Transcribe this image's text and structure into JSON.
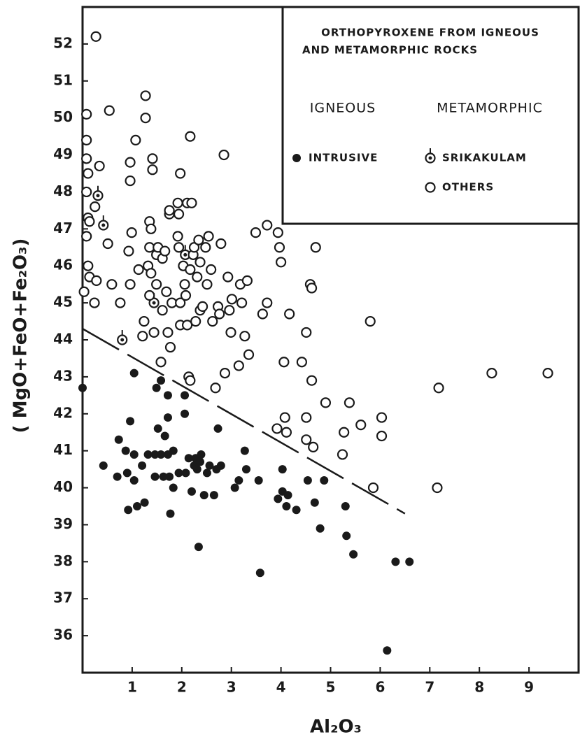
{
  "chart_data": {
    "type": "scatter",
    "legend_title": [
      "ORTHOPYROXENE FROM IGNEOUS",
      "AND METAMORPHIC ROCKS"
    ],
    "legend_groups": [
      "IGNEOUS",
      "METAMORPHIC"
    ],
    "x_label": "Al₂O₃",
    "y_label": "( MgO+FeO+Fe₂O₃)",
    "xlim": [
      0,
      10
    ],
    "xticks": [
      1,
      2,
      3,
      4,
      5,
      6,
      7,
      8,
      9
    ],
    "ylim": [
      35,
      53
    ],
    "yticks": [
      36,
      37,
      38,
      39,
      40,
      41,
      42,
      43,
      44,
      45,
      46,
      47,
      48,
      49,
      50,
      51,
      52
    ],
    "grid": false,
    "series": [
      {
        "name": "INTRUSIVE",
        "color": "#1a1a1a",
        "marker": "filled",
        "x": [
          0,
          0.42,
          0.73,
          0.7,
          0.87,
          0.9,
          0.96,
          0.92,
          1.04,
          1.04,
          1.04,
          1.1,
          1.25,
          1.2,
          1.32,
          1.46,
          1.46,
          1.49,
          1.58,
          1.52,
          1.58,
          1.63,
          1.66,
          1.72,
          1.72,
          1.72,
          1.75,
          1.77,
          1.83,
          1.83,
          1.94,
          2.06,
          2.06,
          2.08,
          2.14,
          2.2,
          2.25,
          2.28,
          2.31,
          2.34,
          2.37,
          2.39,
          2.45,
          2.51,
          2.56,
          2.65,
          2.7,
          2.73,
          2.79,
          3.07,
          3.15,
          3.27,
          3.3,
          3.55,
          3.58,
          3.94,
          4.03,
          4.03,
          4.11,
          4.14,
          4.31,
          4.54,
          4.68,
          4.79,
          4.87,
          5.3,
          5.32,
          5.46,
          6.14,
          6.31,
          6.59
        ],
        "values": [
          42.7,
          40.6,
          41.3,
          40.3,
          41.0,
          40.4,
          41.8,
          39.4,
          43.1,
          40.9,
          40.2,
          39.5,
          39.6,
          40.6,
          40.9,
          40.9,
          40.3,
          42.7,
          42.9,
          41.6,
          40.9,
          40.3,
          41.4,
          42.5,
          41.9,
          40.9,
          40.3,
          39.3,
          41.0,
          40.0,
          40.4,
          42.5,
          42.0,
          40.4,
          40.8,
          39.9,
          40.6,
          40.8,
          40.5,
          38.4,
          40.7,
          40.9,
          39.8,
          40.4,
          40.6,
          39.8,
          40.5,
          41.6,
          40.6,
          40.0,
          40.2,
          41.0,
          40.5,
          40.2,
          37.7,
          39.7,
          40.5,
          39.9,
          39.5,
          39.8,
          39.4,
          40.2,
          39.6,
          38.9,
          40.2,
          39.5,
          38.7,
          38.2,
          35.6,
          38.0,
          38.0
        ]
      },
      {
        "name": "SRIKAKULAM",
        "color": "#1a1a1a",
        "marker": "dotted",
        "x": [
          0.31,
          0.42,
          0.8,
          1.44,
          2.07
        ],
        "values": [
          47.9,
          47.1,
          44.0,
          45.0,
          46.3
        ]
      },
      {
        "name": "OTHERS",
        "color": "#1a1a1a",
        "marker": "open",
        "x": [
          0.27,
          0.08,
          0.08,
          0.08,
          0.11,
          0.08,
          0.11,
          0.14,
          0.08,
          0.11,
          0.14,
          0.28,
          0.03,
          0.24,
          0.34,
          0.25,
          0.51,
          0.54,
          0.59,
          0.76,
          0.96,
          0.96,
          0.99,
          0.93,
          0.96,
          1.07,
          1.13,
          1.24,
          1.21,
          1.27,
          1.27,
          1.32,
          1.35,
          1.35,
          1.38,
          1.38,
          1.35,
          1.41,
          1.41,
          1.44,
          1.49,
          1.52,
          1.49,
          1.58,
          1.61,
          1.61,
          1.66,
          1.69,
          1.72,
          1.75,
          1.75,
          1.77,
          1.8,
          1.92,
          1.94,
          1.97,
          1.92,
          1.94,
          1.97,
          1.97,
          2.03,
          2.06,
          2.08,
          2.11,
          2.11,
          2.14,
          2.17,
          2.17,
          2.17,
          2.2,
          2.23,
          2.25,
          2.28,
          2.31,
          2.34,
          2.37,
          2.37,
          2.42,
          2.48,
          2.51,
          2.54,
          2.59,
          2.62,
          2.68,
          2.73,
          2.76,
          2.79,
          2.85,
          2.87,
          2.93,
          2.96,
          2.99,
          3.01,
          3.15,
          3.18,
          3.21,
          3.27,
          3.32,
          3.35,
          3.49,
          3.63,
          3.72,
          3.72,
          3.92,
          3.94,
          3.97,
          4.0,
          4.06,
          4.08,
          4.11,
          4.17,
          4.42,
          4.51,
          4.51,
          4.51,
          4.59,
          4.62,
          4.62,
          4.65,
          4.7,
          4.9,
          5.24,
          5.27,
          5.38,
          5.61,
          5.8,
          5.86,
          6.03,
          6.03,
          7.18,
          7.15,
          8.25,
          9.38
        ],
        "values": [
          52.2,
          50.1,
          49.4,
          48.9,
          48.5,
          48.0,
          47.3,
          47.2,
          46.8,
          46.0,
          45.7,
          45.6,
          45.3,
          45.0,
          48.7,
          47.6,
          46.6,
          50.2,
          45.5,
          45.0,
          48.8,
          48.3,
          46.9,
          46.4,
          45.5,
          49.4,
          45.9,
          44.5,
          44.1,
          50.6,
          50.0,
          46.0,
          47.2,
          46.5,
          47.0,
          45.8,
          45.2,
          48.9,
          48.6,
          44.2,
          46.3,
          46.5,
          45.5,
          43.4,
          46.2,
          44.8,
          46.4,
          45.3,
          44.2,
          47.4,
          47.5,
          43.8,
          45.0,
          47.7,
          47.4,
          48.5,
          46.8,
          46.5,
          45.0,
          44.4,
          46.0,
          45.5,
          45.2,
          47.7,
          44.4,
          43.0,
          49.5,
          45.9,
          42.9,
          47.7,
          46.3,
          46.5,
          44.5,
          45.7,
          46.7,
          46.1,
          44.8,
          44.9,
          46.5,
          45.5,
          46.8,
          45.9,
          44.5,
          42.7,
          44.9,
          44.7,
          46.6,
          49.0,
          43.1,
          45.7,
          44.8,
          44.2,
          45.1,
          43.3,
          45.5,
          45.0,
          44.1,
          45.6,
          43.6,
          46.9,
          44.7,
          45.0,
          47.1,
          41.6,
          46.9,
          46.5,
          46.1,
          43.4,
          41.9,
          41.5,
          44.7,
          43.4,
          44.2,
          41.9,
          41.3,
          45.5,
          45.4,
          42.9,
          41.1,
          46.5,
          42.3,
          40.9,
          41.5,
          42.3,
          41.7,
          44.5,
          40.0,
          41.9,
          41.4,
          42.7,
          40.0,
          43.1,
          43.1
        ]
      }
    ],
    "divider": {
      "x": [
        0,
        6.5
      ],
      "values": [
        44.3,
        39.3
      ]
    }
  }
}
